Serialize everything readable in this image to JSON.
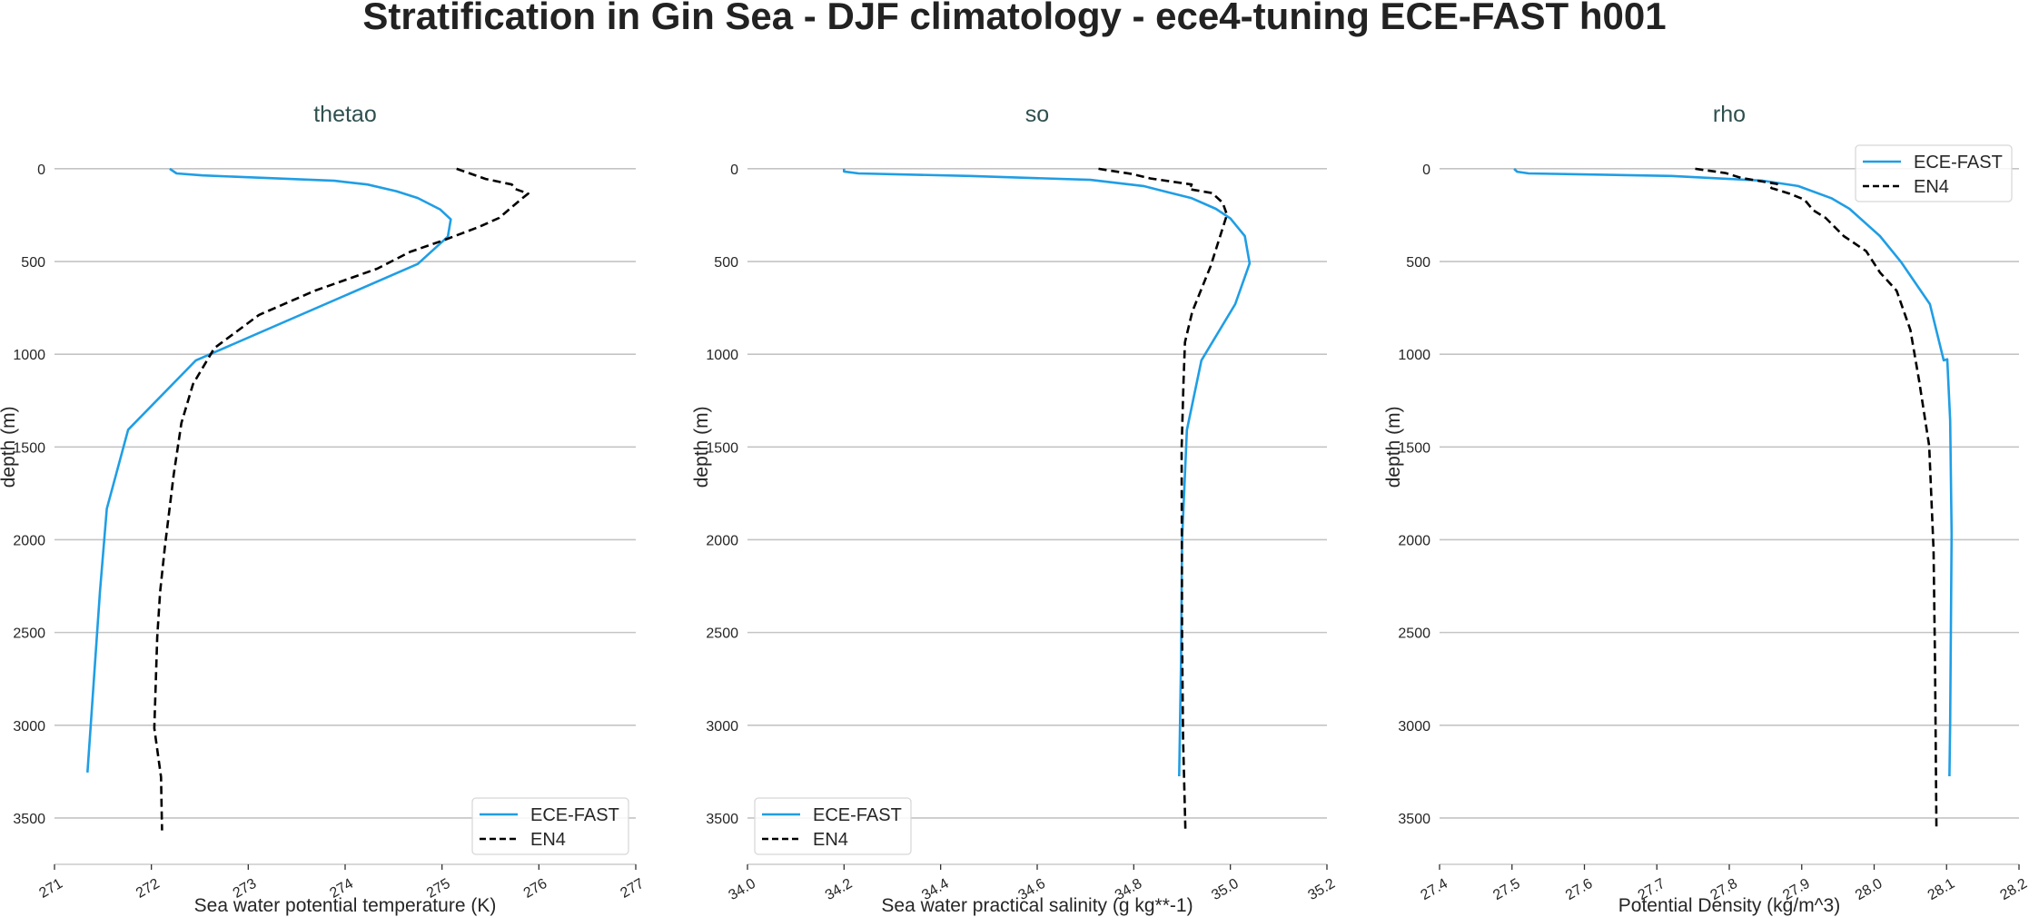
{
  "title": "Stratification in Gin Sea - DJF climatology - ece4-tuning ECE-FAST h001",
  "chart_data": [
    {
      "type": "line",
      "title": "thetao",
      "xlabel": "Sea water potential temperature (K)",
      "ylabel": "depth (m)",
      "xlim": [
        271,
        277
      ],
      "ylim": [
        3750,
        -200
      ],
      "y_inverted": true,
      "xticks": [
        "271",
        "272",
        "273",
        "274",
        "275",
        "276",
        "277"
      ],
      "xtick_values": [
        271,
        272,
        273,
        274,
        275,
        276,
        277
      ],
      "yticks": [
        "0",
        "500",
        "1000",
        "1500",
        "2000",
        "2500",
        "3000",
        "3500"
      ],
      "ytick_values": [
        0,
        500,
        1000,
        1500,
        2000,
        2500,
        3000,
        3500
      ],
      "grid": "horizontal",
      "legend": "lower right",
      "series": [
        {
          "name": "ECE-FAST",
          "color": "#1f9ee5",
          "style": "solid",
          "points": [
            [
              272.19,
              0
            ],
            [
              272.26,
              25
            ],
            [
              272.53,
              36
            ],
            [
              273.89,
              65
            ],
            [
              274.23,
              85
            ],
            [
              274.53,
              121
            ],
            [
              274.75,
              158
            ],
            [
              274.98,
              219
            ],
            [
              275.09,
              273
            ],
            [
              275.06,
              366
            ],
            [
              274.75,
              513
            ],
            [
              272.46,
              1033
            ],
            [
              271.76,
              1407
            ],
            [
              271.54,
              1833
            ],
            [
              271.47,
              2277
            ],
            [
              271.34,
              3255
            ]
          ]
        },
        {
          "name": "EN4",
          "color": "#000000",
          "style": "dashed",
          "points": [
            [
              275.15,
              0
            ],
            [
              275.45,
              55
            ],
            [
              275.72,
              85
            ],
            [
              275.76,
              110
            ],
            [
              275.89,
              134
            ],
            [
              275.81,
              167
            ],
            [
              275.59,
              265
            ],
            [
              275.38,
              314
            ],
            [
              275.01,
              387
            ],
            [
              274.67,
              448
            ],
            [
              274.33,
              539
            ],
            [
              273.69,
              657
            ],
            [
              273.11,
              788
            ],
            [
              272.65,
              967
            ],
            [
              272.43,
              1161
            ],
            [
              272.31,
              1371
            ],
            [
              272.23,
              1651
            ],
            [
              272.14,
              2036
            ],
            [
              272.09,
              2281
            ],
            [
              272.06,
              2526
            ],
            [
              272.03,
              3016
            ],
            [
              272.1,
              3279
            ],
            [
              272.11,
              3567
            ]
          ]
        }
      ]
    },
    {
      "type": "line",
      "title": "so",
      "xlabel": "Sea water practical salinity (g kg**-1)",
      "ylabel": "depth (m)",
      "xlim": [
        34.0,
        35.2
      ],
      "ylim": [
        3750,
        -200
      ],
      "y_inverted": true,
      "xticks": [
        "34.0",
        "34.2",
        "34.4",
        "34.6",
        "34.8",
        "35.0",
        "35.2"
      ],
      "xtick_values": [
        34.0,
        34.2,
        34.4,
        34.6,
        34.8,
        35.0,
        35.2
      ],
      "yticks": [
        "0",
        "500",
        "1000",
        "1500",
        "2000",
        "2500",
        "3000",
        "3500"
      ],
      "ytick_values": [
        0,
        500,
        1000,
        1500,
        2000,
        2500,
        3000,
        3500
      ],
      "grid": "horizontal",
      "legend": "lower left",
      "series": [
        {
          "name": "ECE-FAST",
          "color": "#1f9ee5",
          "style": "solid",
          "points": [
            [
              34.2,
              0
            ],
            [
              34.2,
              15
            ],
            [
              34.23,
              25
            ],
            [
              34.46,
              39
            ],
            [
              34.71,
              60
            ],
            [
              34.82,
              93
            ],
            [
              34.87,
              126
            ],
            [
              34.92,
              159
            ],
            [
              34.97,
              216
            ],
            [
              35.0,
              268
            ],
            [
              35.03,
              363
            ],
            [
              35.04,
              510
            ],
            [
              35.01,
              730
            ],
            [
              34.94,
              1033
            ],
            [
              34.91,
              1409
            ],
            [
              34.9,
              2002
            ],
            [
              34.898,
              2647
            ],
            [
              34.894,
              3275
            ]
          ]
        },
        {
          "name": "EN4",
          "color": "#000000",
          "style": "dashed",
          "points": [
            [
              34.727,
              0
            ],
            [
              34.796,
              28
            ],
            [
              34.834,
              52
            ],
            [
              34.92,
              85
            ],
            [
              34.915,
              110
            ],
            [
              34.962,
              131
            ],
            [
              34.984,
              183
            ],
            [
              34.993,
              248
            ],
            [
              34.959,
              526
            ],
            [
              34.921,
              771
            ],
            [
              34.906,
              935
            ],
            [
              34.903,
              1147
            ],
            [
              34.899,
              1510
            ],
            [
              34.9,
              2510
            ],
            [
              34.902,
              3071
            ],
            [
              34.907,
              3571
            ]
          ]
        }
      ]
    },
    {
      "type": "line",
      "title": "rho",
      "xlabel": "Potential Density (kg/m^3)",
      "ylabel": "depth (m)",
      "xlim": [
        27.4,
        28.2
      ],
      "ylim": [
        3750,
        -200
      ],
      "y_inverted": true,
      "xticks": [
        "27.4",
        "27.5",
        "27.6",
        "27.7",
        "27.8",
        "27.9",
        "28.0",
        "28.1",
        "28.2"
      ],
      "xtick_values": [
        27.4,
        27.5,
        27.6,
        27.7,
        27.8,
        27.9,
        28.0,
        28.1,
        28.2
      ],
      "yticks": [
        "0",
        "500",
        "1000",
        "1500",
        "2000",
        "2500",
        "3000",
        "3500"
      ],
      "ytick_values": [
        0,
        500,
        1000,
        1500,
        2000,
        2500,
        3000,
        3500
      ],
      "grid": "horizontal",
      "legend": "upper right",
      "series": [
        {
          "name": "ECE-FAST",
          "color": "#1f9ee5",
          "style": "solid",
          "points": [
            [
              27.503,
              0
            ],
            [
              27.507,
              16
            ],
            [
              27.523,
              25
            ],
            [
              27.72,
              39
            ],
            [
              27.845,
              64
            ],
            [
              27.895,
              93
            ],
            [
              27.941,
              159
            ],
            [
              27.966,
              216
            ],
            [
              28.008,
              363
            ],
            [
              28.037,
              502
            ],
            [
              28.077,
              730
            ],
            [
              28.096,
              1033
            ],
            [
              28.101,
              1027
            ],
            [
              28.105,
              1357
            ],
            [
              28.107,
              1967
            ],
            [
              28.105,
              2985
            ],
            [
              28.104,
              3275
            ]
          ]
        },
        {
          "name": "EN4",
          "color": "#000000",
          "style": "dashed",
          "points": [
            [
              27.753,
              0
            ],
            [
              27.795,
              23
            ],
            [
              27.816,
              49
            ],
            [
              27.866,
              82
            ],
            [
              27.858,
              104
            ],
            [
              27.883,
              134
            ],
            [
              27.904,
              167
            ],
            [
              27.916,
              224
            ],
            [
              27.933,
              265
            ],
            [
              27.958,
              363
            ],
            [
              27.989,
              444
            ],
            [
              28.008,
              559
            ],
            [
              28.031,
              657
            ],
            [
              28.05,
              869
            ],
            [
              28.062,
              1139
            ],
            [
              28.076,
              1494
            ],
            [
              28.082,
              2054
            ],
            [
              28.084,
              2647
            ],
            [
              28.086,
              3564
            ]
          ]
        }
      ]
    }
  ]
}
